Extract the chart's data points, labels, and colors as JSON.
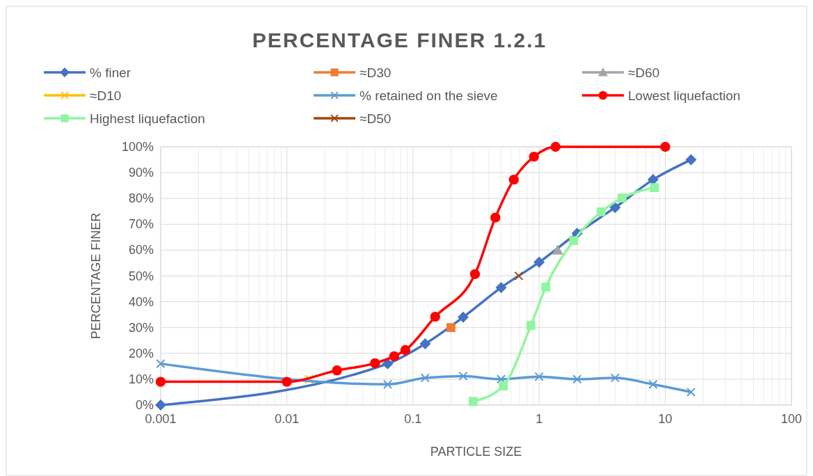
{
  "chart_data": {
    "type": "line",
    "title": "PERCENTAGE FINER 1.2.1",
    "xlabel": "PARTICLE SIZE",
    "ylabel": "PERCENTAGE FINER",
    "log": "x",
    "grid": true,
    "legend": "top",
    "line_style": "solid",
    "xlim": [
      0.001,
      100
    ],
    "xticks": [
      0.001,
      0.01,
      0.1,
      1,
      10,
      100
    ],
    "ylim": [
      0,
      100
    ],
    "yticks": [
      {
        "value": 0,
        "label": "0%"
      },
      {
        "value": 10,
        "label": "10%"
      },
      {
        "value": 20,
        "label": "20%"
      },
      {
        "value": 30,
        "label": "30%"
      },
      {
        "value": 40,
        "label": "40%"
      },
      {
        "value": 50,
        "label": "50%"
      },
      {
        "value": 60,
        "label": "60%"
      },
      {
        "value": 70,
        "label": "70%"
      },
      {
        "value": 80,
        "label": "80%"
      },
      {
        "value": 90,
        "label": "90%"
      },
      {
        "value": 100,
        "label": "100%"
      }
    ],
    "series": [
      {
        "name": "% finer",
        "color": "#4472c4",
        "marker": "diamond",
        "x": [
          0.001,
          0.063,
          0.125,
          0.25,
          0.5,
          1,
          2,
          4,
          8,
          16
        ],
        "values": [
          0,
          16,
          23.7,
          34,
          45.5,
          55.3,
          66.5,
          76.5,
          87.3,
          95
        ]
      },
      {
        "name": "≈D30",
        "color": "#ed7d31",
        "marker": "square",
        "x": [
          0.2
        ],
        "values": [
          30
        ]
      },
      {
        "name": "≈D60",
        "color": "#a5a5a5",
        "marker": "triangle",
        "x": [
          1.4
        ],
        "values": [
          60
        ]
      },
      {
        "name": "≈D10",
        "color": "#ffc000",
        "marker": "cross",
        "x": [
          0.015
        ],
        "values": [
          10
        ]
      },
      {
        "name": "% retained on the sieve",
        "color": "#5b9bd5",
        "marker": "cross",
        "x": [
          0.001,
          0.063,
          0.125,
          0.25,
          0.5,
          1,
          2,
          4,
          8,
          16
        ],
        "values": [
          16,
          8,
          10.5,
          11.2,
          10,
          11,
          10,
          10.5,
          8,
          5
        ]
      },
      {
        "name": "Lowest liquefaction",
        "color": "#ff0000",
        "marker": "circle",
        "x": [
          0.001,
          0.01,
          0.025,
          0.05,
          0.071,
          0.087,
          0.15,
          0.31,
          0.45,
          0.63,
          0.91,
          1.35,
          10
        ],
        "values": [
          9,
          9,
          13.4,
          16.2,
          18.9,
          21.3,
          34.2,
          50.7,
          72.6,
          87.3,
          96.2,
          100,
          100
        ]
      },
      {
        "name": "Highest liquefaction",
        "color": "#90f5a0",
        "marker": "square",
        "x": [
          0.3,
          0.52,
          0.86,
          1.13,
          1.88,
          3.1,
          4.55,
          8.2
        ],
        "values": [
          1.4,
          7.4,
          30.8,
          45.7,
          63.7,
          74.8,
          80.2,
          84.2
        ]
      },
      {
        "name": "≈D50",
        "color": "#9e480e",
        "marker": "cross",
        "x": [
          0.69
        ],
        "values": [
          50
        ]
      }
    ]
  }
}
